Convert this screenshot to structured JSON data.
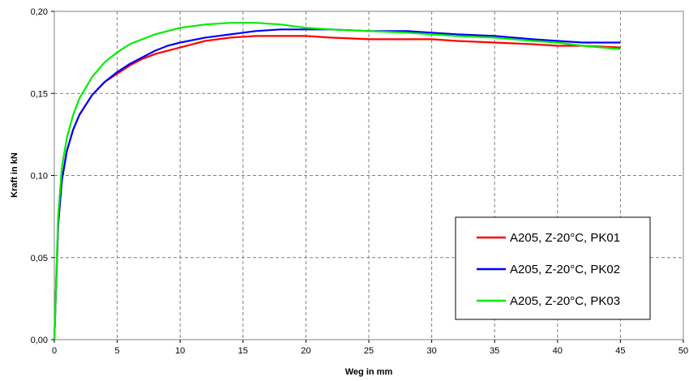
{
  "chart_data": {
    "type": "line",
    "title": "",
    "xlabel": "Weg in mm",
    "ylabel": "Kraft in kN",
    "xlim": [
      0,
      50
    ],
    "ylim": [
      0,
      0.2
    ],
    "x_ticks": [
      0,
      5,
      10,
      15,
      20,
      25,
      30,
      35,
      40,
      45,
      50
    ],
    "x_tick_labels": [
      "0",
      "5",
      "10",
      "15",
      "20",
      "25",
      "30",
      "35",
      "40",
      "45",
      "50"
    ],
    "y_ticks": [
      0,
      0.05,
      0.1,
      0.15,
      0.2
    ],
    "y_tick_labels": [
      "0,00",
      "0,05",
      "0,10",
      "0,15",
      "0,20"
    ],
    "grid": true,
    "grid_style": "dashed",
    "legend_position": "bottom-right",
    "series": [
      {
        "name": "A205, Z-20°C, PK01",
        "color": "#ff0000",
        "x": [
          0,
          0.3,
          0.6,
          1,
          1.5,
          2,
          3,
          4,
          5,
          6,
          7,
          8,
          9,
          10,
          12,
          14,
          16,
          18,
          20,
          22,
          25,
          28,
          30,
          32,
          35,
          38,
          40,
          42,
          45
        ],
        "y": [
          0,
          0.07,
          0.097,
          0.115,
          0.128,
          0.137,
          0.149,
          0.157,
          0.162,
          0.167,
          0.171,
          0.174,
          0.176,
          0.178,
          0.182,
          0.184,
          0.185,
          0.185,
          0.185,
          0.184,
          0.183,
          0.183,
          0.183,
          0.182,
          0.181,
          0.18,
          0.179,
          0.179,
          0.178
        ]
      },
      {
        "name": "A205, Z-20°C, PK02",
        "color": "#0000ff",
        "x": [
          0,
          0.3,
          0.6,
          1,
          1.5,
          2,
          3,
          4,
          5,
          6,
          7,
          8,
          9,
          10,
          12,
          14,
          16,
          18,
          20,
          22,
          25,
          28,
          30,
          32,
          35,
          38,
          40,
          42,
          45
        ],
        "y": [
          0,
          0.07,
          0.097,
          0.115,
          0.128,
          0.137,
          0.149,
          0.157,
          0.163,
          0.168,
          0.172,
          0.176,
          0.179,
          0.181,
          0.184,
          0.186,
          0.188,
          0.189,
          0.189,
          0.189,
          0.188,
          0.188,
          0.187,
          0.186,
          0.185,
          0.183,
          0.182,
          0.181,
          0.181
        ]
      },
      {
        "name": "A205, Z-20°C, PK03",
        "color": "#00ee00",
        "x": [
          0,
          0.3,
          0.6,
          1,
          1.5,
          2,
          3,
          4,
          5,
          6,
          7,
          8,
          9,
          10,
          12,
          14,
          16,
          18,
          20,
          22,
          25,
          28,
          30,
          32,
          35,
          38,
          40,
          42,
          45
        ],
        "y": [
          0,
          0.075,
          0.105,
          0.123,
          0.137,
          0.147,
          0.16,
          0.169,
          0.175,
          0.18,
          0.183,
          0.186,
          0.188,
          0.19,
          0.192,
          0.193,
          0.193,
          0.192,
          0.19,
          0.189,
          0.188,
          0.187,
          0.186,
          0.185,
          0.184,
          0.182,
          0.181,
          0.179,
          0.177
        ]
      }
    ]
  }
}
